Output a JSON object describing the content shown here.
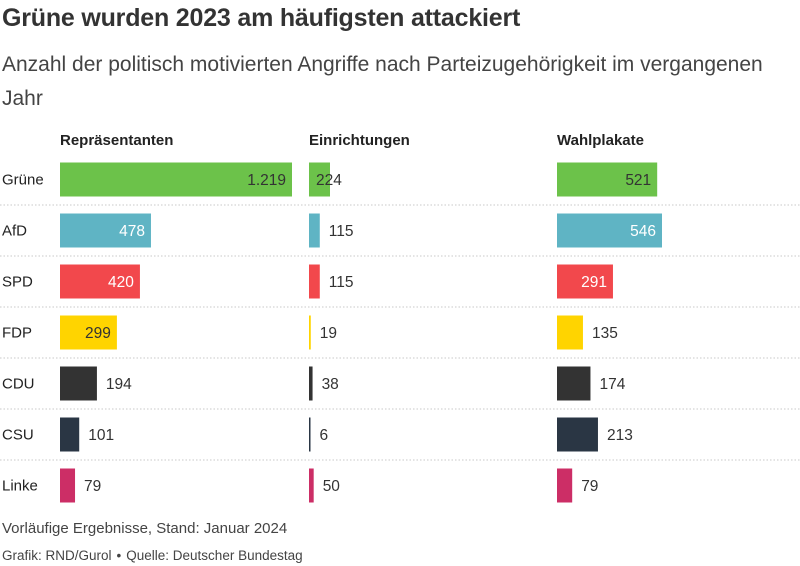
{
  "title": "Grüne wurden 2023 am häufigsten attackiert",
  "subtitle": "Anzahl der politisch motivierten Angriffe nach Parteizugehörigkeit im vergangenen Jahr",
  "note": "Vorläufige Ergebnisse, Stand: Januar 2024",
  "credit": "Grafik: RND/Gurol",
  "source": "Quelle: Deutscher Bundestag",
  "colors": {
    "Grüne": "#6cc24a",
    "AfD": "#5fb4c4",
    "SPD": "#f2484c",
    "FDP": "#ffd400",
    "CDU": "#333333",
    "CSU": "#2a3644",
    "Linke": "#cc2e66"
  },
  "chart_data": {
    "type": "bar",
    "categories": [
      "Grüne",
      "AfD",
      "SPD",
      "FDP",
      "CDU",
      "CSU",
      "Linke"
    ],
    "series": [
      {
        "name": "Repräsentanten",
        "values": [
          1219,
          478,
          420,
          299,
          194,
          101,
          79
        ],
        "labels": [
          "1.219",
          "478",
          "420",
          "299",
          "194",
          "101",
          "79"
        ]
      },
      {
        "name": "Einrichtungen",
        "values": [
          224,
          115,
          115,
          19,
          38,
          6,
          50
        ],
        "labels": [
          "224",
          "115",
          "115",
          "19",
          "38",
          "6",
          "50"
        ]
      },
      {
        "name": "Wahlplakate",
        "values": [
          521,
          546,
          291,
          135,
          174,
          213,
          79
        ],
        "labels": [
          "521",
          "546",
          "291",
          "135",
          "174",
          "213",
          "79"
        ]
      }
    ]
  }
}
